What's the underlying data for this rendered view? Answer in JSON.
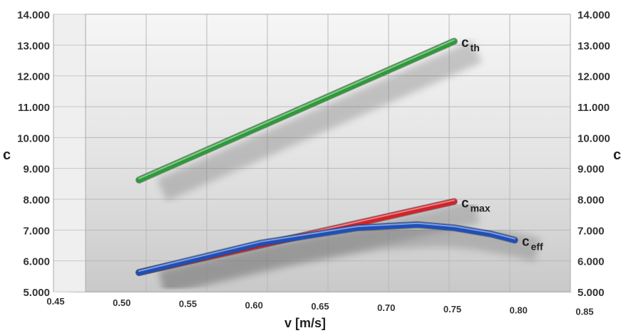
{
  "chart_data": {
    "type": "line",
    "xlabel": "v [m/s]",
    "ylabel_left": "c",
    "ylabel_right": "c",
    "xlim": [
      0.45,
      0.85
    ],
    "ylim": [
      5000,
      14000
    ],
    "x_ticks": [
      "0.45",
      "0.50",
      "0.55",
      "0.60",
      "0.65",
      "0.70",
      "0.75",
      "0.80",
      "0.85"
    ],
    "y_ticks": [
      "5.000",
      "6.000",
      "7.000",
      "8.000",
      "9.000",
      "10.000",
      "11.000",
      "12.000",
      "13.000",
      "14.000"
    ],
    "grid": true,
    "series": [
      {
        "name": "c th",
        "main": "c",
        "sub": "th",
        "color": "#2e9a3a",
        "x": [
          0.5,
          0.76
        ],
        "y": [
          8900,
          13400
        ]
      },
      {
        "name": "c max",
        "main": "c",
        "sub": "max",
        "color": "#d0242c",
        "x": [
          0.5,
          0.76
        ],
        "y": [
          5900,
          8200
        ]
      },
      {
        "name": "c eff",
        "main": "c",
        "sub": "eff",
        "color": "#1f4fb8",
        "x": [
          0.5,
          0.6,
          0.68,
          0.73,
          0.76,
          0.79,
          0.81
        ],
        "y": [
          5900,
          6850,
          7350,
          7450,
          7350,
          7150,
          6950
        ]
      }
    ]
  }
}
